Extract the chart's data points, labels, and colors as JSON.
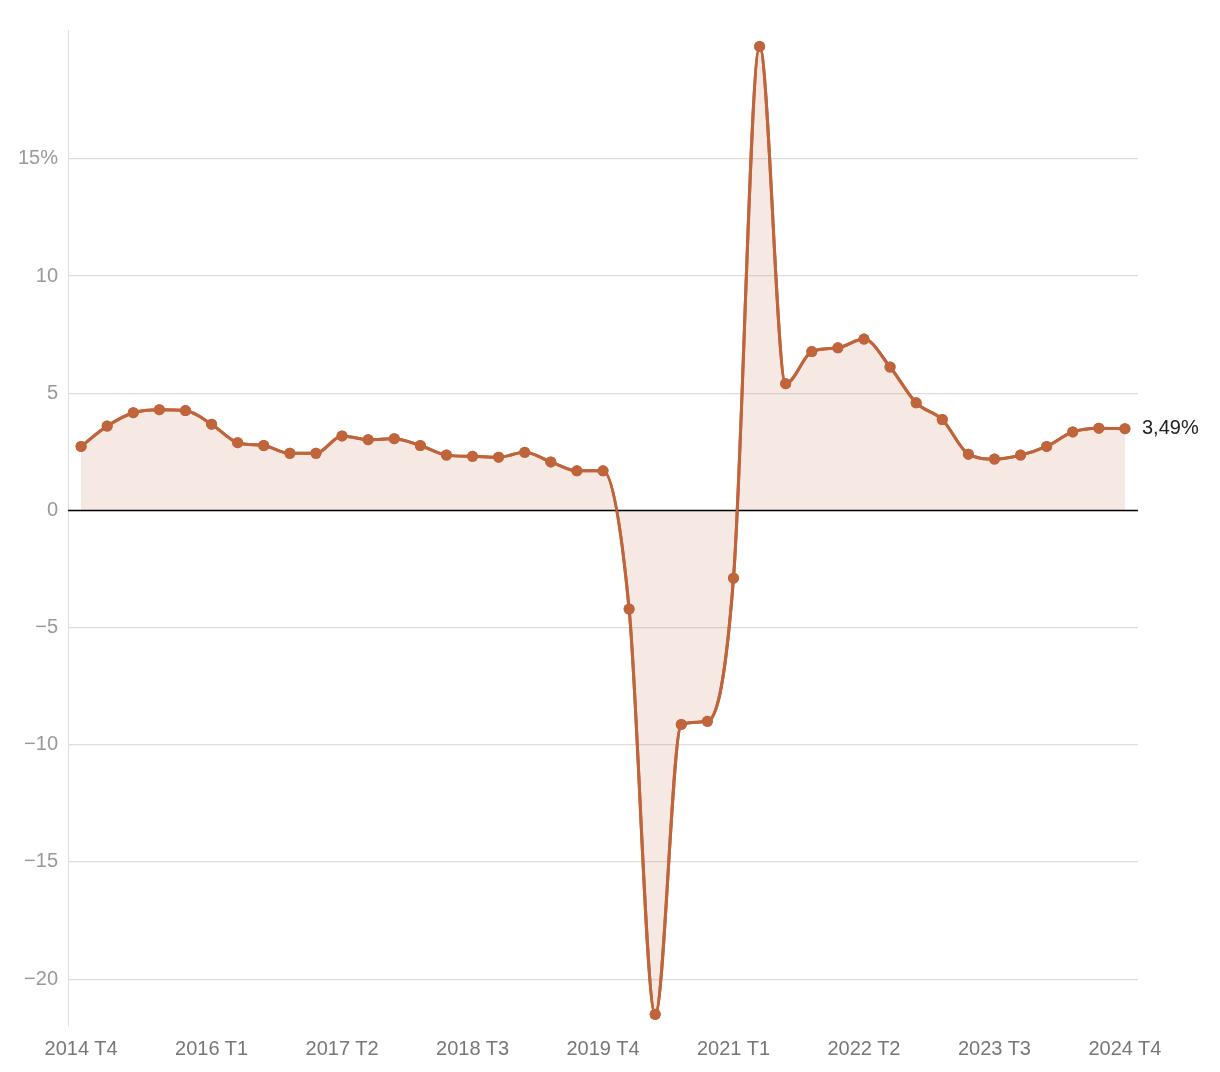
{
  "chart_data": {
    "type": "area",
    "categories": [
      "2014 T4",
      null,
      null,
      null,
      null,
      "2016 T1",
      null,
      null,
      null,
      null,
      "2017 T2",
      null,
      null,
      null,
      null,
      "2018 T3",
      null,
      null,
      null,
      null,
      "2019 T4",
      null,
      null,
      null,
      null,
      "2021 T1",
      null,
      null,
      null,
      null,
      "2022 T2",
      null,
      null,
      null,
      null,
      "2023 T3",
      null,
      null,
      null,
      null,
      "2024 T4"
    ],
    "series": [
      {
        "color": "#c0643c",
        "values": [
          2.73,
          3.6,
          4.17,
          4.3,
          4.26,
          3.68,
          2.89,
          2.77,
          2.44,
          2.44,
          3.18,
          3.02,
          3.06,
          2.77,
          2.36,
          2.31,
          2.27,
          2.48,
          2.07,
          1.69,
          1.69,
          -4.21,
          -21.5,
          -9.13,
          -9.0,
          -2.89,
          19.8,
          5.41,
          6.78,
          6.94,
          7.31,
          6.12,
          4.59,
          3.88,
          2.4,
          2.19,
          2.36,
          2.73,
          3.35,
          3.51,
          3.49
        ]
      }
    ],
    "ylim": [
      -22,
      20.5
    ],
    "yticks": [
      {
        "value": -20,
        "label": "−20"
      },
      {
        "value": -15,
        "label": "−15"
      },
      {
        "value": -10,
        "label": "−10"
      },
      {
        "value": -5,
        "label": "−5"
      },
      0,
      5,
      10,
      {
        "value": 15,
        "label": "15%"
      }
    ],
    "ref_lines": [
      {
        "axis": "y",
        "value": 0,
        "color": "#000000"
      }
    ],
    "annotations": [
      {
        "text": "3,49%",
        "x": "2024 T4",
        "y": 3.49
      }
    ],
    "grid": "y",
    "marker": "circle",
    "line_style": "solid",
    "legend": false
  }
}
